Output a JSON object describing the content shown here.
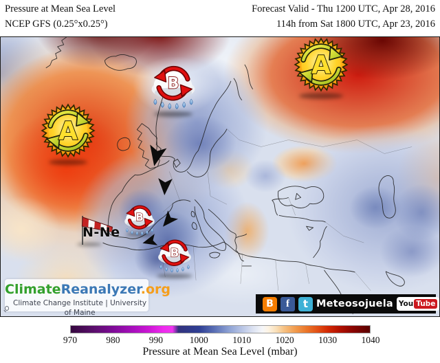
{
  "header": {
    "product": "Pressure at Mean Sea Level",
    "model": "NCEP GFS (0.25°x0.25°)",
    "valid": "Forecast Valid - Thu 1200 UTC, Apr 28, 2016",
    "init": "114h from Sat 1800 UTC, Apr 23, 2016"
  },
  "map": {
    "high_symbol": "A",
    "low_symbol": "B",
    "wind_direction_label": "N-Ne",
    "annotation_icons": [
      "anticyclone-sun-icon",
      "storm-cloud-icon",
      "windsock-icon",
      "wind-arrow-icon"
    ],
    "anomaly_colors": {
      "high": "#cf1505",
      "low": "#7183ba",
      "neutral": "#f3f5f9"
    }
  },
  "branding": {
    "logo_part1": "Climate",
    "logo_part2": "Reanalyzer",
    "logo_part3": ".org",
    "logo_color1": "#33a02c",
    "logo_color2": "#3b78b5",
    "logo_color3": "#f59e1b",
    "institute": "Climate Change Institute | University of Maine"
  },
  "social": {
    "handle": "Meteosojuela",
    "blogger_letter": "B",
    "facebook_letter": "f",
    "twitter_letter": "t",
    "blogger_color": "#f57d00",
    "facebook_color": "#3a5a98",
    "twitter_color": "#3eb1d6",
    "youtube_you": "You",
    "youtube_tube": "Tube",
    "youtube_red": "#cc181e"
  },
  "colorbar": {
    "ticks": [
      "970",
      "980",
      "990",
      "1000",
      "1010",
      "1020",
      "1030",
      "1040"
    ],
    "unit_caption": "Pressure at Mean Sea Level (mbar)",
    "min": 970,
    "max": 1040
  }
}
